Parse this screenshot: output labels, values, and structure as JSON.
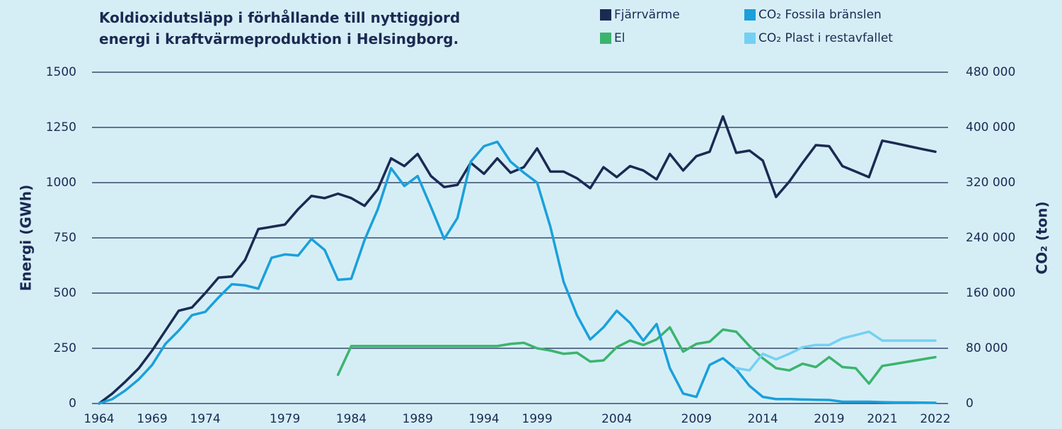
{
  "chart_data": {
    "type": "line",
    "title": "Koldioxidutsläpp i förhållande till nyttiggjord energi i kraftvärmeproduktion i Helsingborg.",
    "y_label": "Energi (GWh)",
    "y2_label": "CO₂ (ton)",
    "categories": [
      "1964",
      null,
      null,
      null,
      "1969",
      null,
      null,
      null,
      "1974",
      null,
      null,
      null,
      null,
      null,
      "1979",
      null,
      null,
      null,
      null,
      "1984",
      null,
      null,
      null,
      null,
      "1989",
      null,
      null,
      null,
      null,
      "1994",
      null,
      null,
      null,
      "1999",
      null,
      null,
      null,
      null,
      null,
      "2004",
      null,
      null,
      null,
      null,
      null,
      "2009",
      null,
      null,
      null,
      null,
      "2014",
      null,
      null,
      null,
      null,
      "2019",
      null,
      null,
      null,
      "2021",
      null,
      null,
      null,
      "2022"
    ],
    "ylim": [
      0,
      1500
    ],
    "yticks": [
      0,
      250,
      500,
      750,
      1000,
      1250,
      1500
    ],
    "y2lim": [
      0,
      480000
    ],
    "y2ticks": [
      0,
      {
        "value": 80000,
        "label": "80 000"
      },
      {
        "value": 160000,
        "label": "160 000"
      },
      {
        "value": 240000,
        "label": "240 000"
      },
      {
        "value": 320000,
        "label": "320 000"
      },
      {
        "value": 400000,
        "label": "400 000"
      },
      {
        "value": 480000,
        "label": "480 000"
      }
    ],
    "grid": true,
    "legend": "top",
    "series": [
      {
        "name": "Fjärrvärme",
        "color": "#1b2a52",
        "values": [
          0,
          45,
          100,
          160,
          240,
          330,
          420,
          435,
          500,
          570,
          575,
          650,
          790,
          800,
          810,
          880,
          940,
          930,
          950,
          930,
          895,
          970,
          1110,
          1075,
          1130,
          1030,
          980,
          990,
          1090,
          1040,
          1110,
          1045,
          1070,
          1155,
          1050,
          1050,
          1020,
          975,
          1070,
          1025,
          1075,
          1055,
          1015,
          1130,
          1055,
          1120,
          1140,
          1300,
          1135,
          1145,
          1100,
          935,
          1005,
          1090,
          1170,
          1165,
          1075,
          1050,
          1025,
          1190,
          1178,
          1165,
          1152,
          1140
        ]
      },
      {
        "name": "El",
        "color": "#3cb46e",
        "values": [
          null,
          null,
          null,
          null,
          null,
          null,
          null,
          null,
          null,
          null,
          null,
          null,
          null,
          null,
          null,
          null,
          null,
          null,
          130,
          260,
          260,
          260,
          260,
          260,
          260,
          260,
          260,
          260,
          260,
          260,
          260,
          270,
          275,
          250,
          240,
          225,
          230,
          190,
          195,
          255,
          285,
          265,
          290,
          345,
          235,
          270,
          280,
          335,
          325,
          260,
          205,
          160,
          150,
          180,
          165,
          210,
          165,
          160,
          90,
          170,
          180,
          190,
          200,
          210
        ]
      },
      {
        "name": "CO₂ Fossila bränslen",
        "color": "#1aa0db",
        "axis": "y2",
        "values": [
          0,
          6400,
          19200,
          35200,
          56000,
          86400,
          105600,
          128000,
          132800,
          153600,
          172800,
          171200,
          166400,
          211200,
          216000,
          214400,
          238400,
          222400,
          179200,
          180800,
          236800,
          281600,
          340800,
          315200,
          329600,
          284800,
          238400,
          268800,
          350400,
          372800,
          379200,
          350400,
          334400,
          320000,
          256000,
          176000,
          128000,
          92800,
          110400,
          134400,
          116800,
          91200,
          115200,
          51200,
          14400,
          9600,
          56000,
          65600,
          49600,
          25600,
          9600,
          6400,
          6400,
          5800,
          5400,
          5100,
          2600,
          2600,
          2600,
          1900,
          1600,
          1600,
          1300,
          1000
        ]
      },
      {
        "name": "CO₂ Plast i restavfallet",
        "color": "#74d0f3",
        "axis": "y2",
        "values": [
          null,
          null,
          null,
          null,
          null,
          null,
          null,
          null,
          null,
          null,
          null,
          null,
          null,
          null,
          null,
          null,
          null,
          null,
          null,
          null,
          null,
          null,
          null,
          null,
          null,
          null,
          null,
          null,
          null,
          null,
          null,
          null,
          null,
          null,
          null,
          null,
          null,
          null,
          null,
          null,
          null,
          null,
          null,
          null,
          null,
          null,
          null,
          null,
          51200,
          48000,
          72000,
          64000,
          72000,
          81600,
          84800,
          84800,
          94400,
          99200,
          104000,
          91200,
          91200,
          91200,
          91200,
          91200
        ]
      }
    ]
  }
}
